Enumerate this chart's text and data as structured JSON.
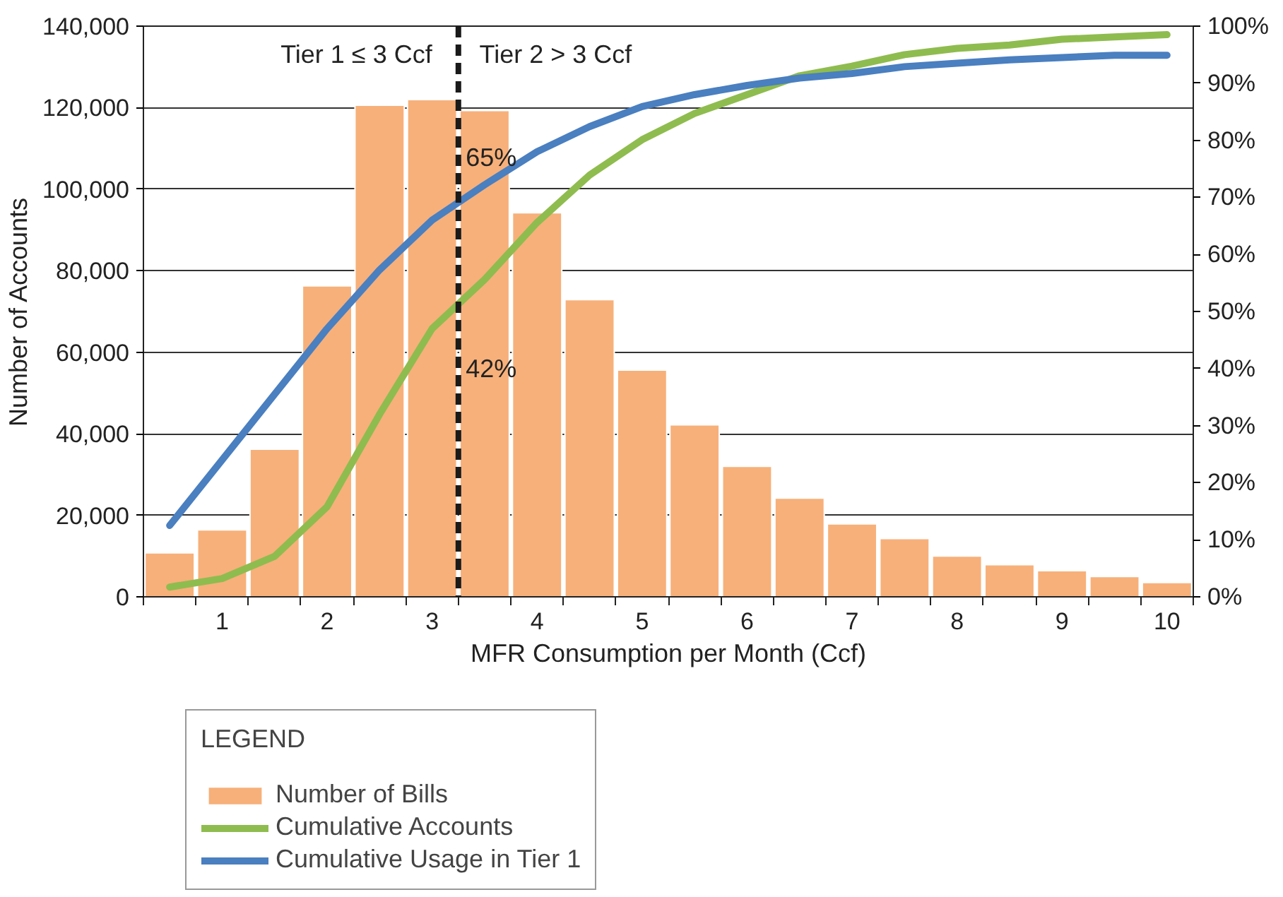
{
  "chart_data": {
    "type": "bar",
    "xlabel": "MFR Consumption per Month (Ccf)",
    "ylabel": "Number of Accounts",
    "legend_title": "LEGEND",
    "legend": "bottom",
    "grid": "y",
    "x": [
      0.5,
      1,
      1.5,
      2,
      2.5,
      3,
      3.5,
      4,
      4.5,
      5,
      5.5,
      6,
      6.5,
      7,
      7.5,
      8,
      8.5,
      9,
      9.5,
      10
    ],
    "series": [
      {
        "name": "Number of Bills",
        "color": "#f7b07a",
        "values": [
          10800,
          16400,
          36200,
          76300,
          120600,
          122000,
          119300,
          94200,
          72900,
          55600,
          42200,
          32000,
          24200,
          17900,
          14300,
          10000,
          7900,
          6400,
          5000,
          3500
        ]
      },
      {
        "name": "Cumulative Accounts",
        "type": "line",
        "axis": "y2",
        "color": "#8fbc4f",
        "values": [
          1.7,
          3.2,
          7.1,
          15.8,
          32,
          47,
          55.6,
          65.6,
          73.9,
          80.1,
          84.7,
          88,
          91.3,
          93,
          95,
          96.1,
          96.7,
          97.7,
          98.1,
          98.5
        ]
      },
      {
        "name": "Cumulative Usage in Tier 1",
        "type": "line",
        "axis": "y2",
        "color": "#4a7fc0",
        "values": [
          12.5,
          24,
          35.5,
          47,
          57.3,
          66,
          72.2,
          78,
          82.4,
          85.9,
          88,
          89.6,
          90.9,
          91.7,
          92.9,
          93.5,
          94.1,
          94.5,
          94.9,
          94.9
        ]
      }
    ],
    "xlim": [
      0.25,
      10.25
    ],
    "xticks": [
      {
        "value": 0.25,
        "label": null
      },
      {
        "value": 0.75,
        "label": null
      },
      {
        "value": 1.25,
        "label": null
      },
      {
        "value": 1.75,
        "label": null
      },
      {
        "value": 2.25,
        "label": null
      },
      {
        "value": 2.75,
        "label": null
      },
      {
        "value": 3.25,
        "label": null
      },
      {
        "value": 3.75,
        "label": null
      },
      {
        "value": 4.25,
        "label": null
      },
      {
        "value": 4.75,
        "label": null
      },
      {
        "value": 5.25,
        "label": null
      },
      {
        "value": 5.75,
        "label": null
      },
      {
        "value": 6.25,
        "label": null
      },
      {
        "value": 6.75,
        "label": null
      },
      {
        "value": 7.25,
        "label": null
      },
      {
        "value": 7.75,
        "label": null
      },
      {
        "value": 8.25,
        "label": null
      },
      {
        "value": 8.75,
        "label": null
      },
      {
        "value": 9.25,
        "label": null
      },
      {
        "value": 9.75,
        "label": null
      },
      {
        "value": 10.25,
        "label": null
      },
      1,
      2,
      3,
      4,
      5,
      6,
      7,
      8,
      9,
      10
    ],
    "ylim": [
      0,
      140000
    ],
    "yticks": [
      0,
      {
        "value": 20000,
        "label": "20,000"
      },
      {
        "value": 40000,
        "label": "40,000"
      },
      {
        "value": 60000,
        "label": "60,000"
      },
      {
        "value": 80000,
        "label": "80,000"
      },
      {
        "value": 100000,
        "label": "100,000"
      },
      {
        "value": 120000,
        "label": "120,000"
      },
      {
        "value": 140000,
        "label": "140,000"
      }
    ],
    "y2lim": [
      0,
      100
    ],
    "y2ticks": [
      {
        "value": 0,
        "label": "0%"
      },
      {
        "value": 10,
        "label": "10%"
      },
      {
        "value": 20,
        "label": "20%"
      },
      {
        "value": 30,
        "label": "30%"
      },
      {
        "value": 40,
        "label": "40%"
      },
      {
        "value": 50,
        "label": "50%"
      },
      {
        "value": 60,
        "label": "60%"
      },
      {
        "value": 70,
        "label": "70%"
      },
      {
        "value": 80,
        "label": "80%"
      },
      {
        "value": 90,
        "label": "90%"
      },
      {
        "value": 100,
        "label": "100%"
      }
    ],
    "ref_lines": [
      {
        "axis": "x",
        "value": 3.25,
        "label": null,
        "color": "#1a1a1a",
        "line_style": "dashed"
      }
    ],
    "annotations": [
      "Tier 1 ≤ 3 Ccf",
      "Tier 2 > 3 Ccf",
      "65%",
      "42%"
    ]
  }
}
